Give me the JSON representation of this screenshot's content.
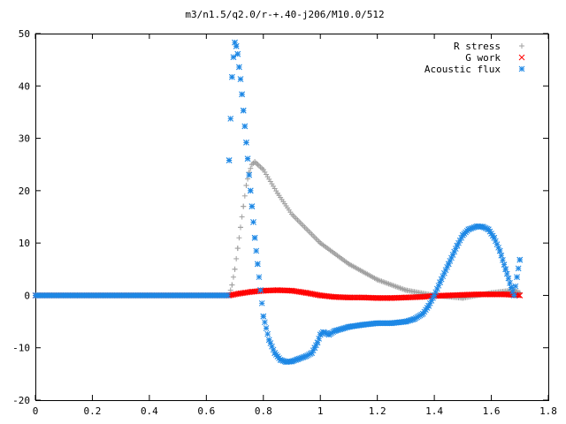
{
  "chart_data": {
    "type": "scatter",
    "title": "m3/n1.5/q2.0/r-+.40-j206/M10.0/512",
    "xlabel": "",
    "ylabel": "",
    "xlim": [
      0,
      1.8
    ],
    "ylim": [
      -20,
      50
    ],
    "xticks": [
      "0",
      "0.2",
      "0.4",
      "0.6",
      "0.8",
      "1",
      "1.2",
      "1.4",
      "1.6",
      "1.8"
    ],
    "yticks": [
      "-20",
      "-10",
      "0",
      "10",
      "20",
      "30",
      "40",
      "50"
    ],
    "grid": false,
    "legend_position": "top-right",
    "series": [
      {
        "name": "R stress",
        "marker": "plus",
        "color": "#a0a0a0",
        "x_start": 0.0,
        "x_end": 1.7,
        "x": [
          0.68,
          0.69,
          0.7,
          0.71,
          0.72,
          0.73,
          0.74,
          0.75,
          0.76,
          0.77,
          0.78,
          0.8,
          0.85,
          0.9,
          1.0,
          1.1,
          1.2,
          1.3,
          1.4,
          1.5,
          1.6,
          1.68,
          1.7
        ],
        "y": [
          0.0,
          2.0,
          5.0,
          9.0,
          13.0,
          17.0,
          21.0,
          23.5,
          25.0,
          25.5,
          25.0,
          24.0,
          19.5,
          15.5,
          10.0,
          6.0,
          3.0,
          1.0,
          0.0,
          -0.5,
          0.5,
          1.0,
          0.5
        ]
      },
      {
        "name": "G work",
        "marker": "cross",
        "color": "#ff0000",
        "x_start": 0.0,
        "x_end": 1.7,
        "x": [
          0.68,
          0.72,
          0.76,
          0.8,
          0.85,
          0.9,
          0.95,
          1.0,
          1.05,
          1.1,
          1.15,
          1.2,
          1.25,
          1.3,
          1.35,
          1.4,
          1.45,
          1.5,
          1.55,
          1.6,
          1.65,
          1.7
        ],
        "y": [
          0.0,
          0.4,
          0.7,
          0.9,
          1.0,
          0.9,
          0.5,
          0.0,
          -0.3,
          -0.4,
          -0.4,
          -0.5,
          -0.5,
          -0.4,
          -0.3,
          -0.1,
          0.0,
          0.1,
          0.2,
          0.2,
          0.2,
          0.0
        ]
      },
      {
        "name": "Acoustic flux",
        "marker": "star",
        "color": "#1e88e5",
        "x_start": 0.0,
        "x_end": 1.7,
        "x": [
          0.68,
          0.69,
          0.695,
          0.7,
          0.705,
          0.71,
          0.715,
          0.72,
          0.725,
          0.73,
          0.735,
          0.74,
          0.745,
          0.75,
          0.755,
          0.76,
          0.765,
          0.77,
          0.78,
          0.79,
          0.8,
          0.82,
          0.84,
          0.86,
          0.88,
          0.9,
          0.92,
          0.95,
          0.97,
          0.98,
          0.99,
          1.0,
          1.01,
          1.02,
          1.03,
          1.05,
          1.1,
          1.15,
          1.2,
          1.25,
          1.3,
          1.33,
          1.36,
          1.38,
          1.4,
          1.42,
          1.45,
          1.48,
          1.5,
          1.52,
          1.55,
          1.57,
          1.59,
          1.61,
          1.63,
          1.65,
          1.67,
          1.68,
          1.69,
          1.7
        ],
        "y": [
          25.8,
          41.7,
          45.5,
          48.3,
          47.6,
          46.1,
          43.6,
          41.3,
          38.4,
          35.3,
          32.3,
          29.2,
          26.1,
          23.0,
          20.0,
          17.0,
          14.0,
          11.0,
          6.0,
          1.0,
          -4.0,
          -8.5,
          -11.0,
          -12.3,
          -12.7,
          -12.6,
          -12.2,
          -11.6,
          -11.0,
          -10.0,
          -9.0,
          -7.5,
          -7.0,
          -7.2,
          -7.5,
          -6.8,
          -6.0,
          -5.6,
          -5.3,
          -5.3,
          -5.0,
          -4.5,
          -3.5,
          -2.0,
          0.0,
          2.5,
          6.0,
          9.5,
          11.5,
          12.6,
          13.2,
          13.1,
          12.6,
          11.0,
          8.5,
          5.0,
          1.5,
          0.0,
          3.5,
          6.8
        ]
      }
    ]
  }
}
